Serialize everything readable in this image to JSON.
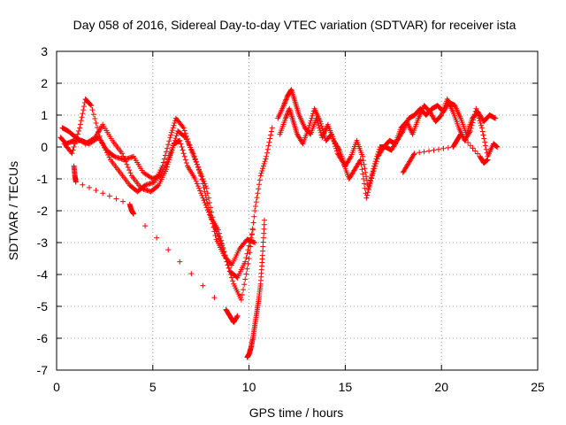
{
  "chart_data": {
    "type": "scatter",
    "title": "Day 058 of 2016, Sidereal Day-to-day VTEC variation (SDTVAR) for receiver ista",
    "xlabel": "GPS time / hours",
    "ylabel": "SDTVAR / TECUs",
    "xlim": [
      0,
      25
    ],
    "ylim": [
      -7,
      3
    ],
    "xticks": [
      "0",
      "5",
      "10",
      "15",
      "20",
      "25"
    ],
    "yticks": [
      "3",
      "2",
      "1",
      "0",
      "-1",
      "-2",
      "-3",
      "-4",
      "-5",
      "-6",
      "-7"
    ],
    "grid": true,
    "marker": "+",
    "series": [
      {
        "name": "SDTVAR",
        "color": "#ff0000",
        "tracks": [
          {
            "x": [
              0.2,
              0.5,
              0.9,
              1.3,
              1.7,
              2.2,
              2.6,
              3.0,
              3.5,
              4.0,
              4.5,
              5.0,
              5.4,
              5.8,
              6.1,
              6.4,
              6.8,
              7.2,
              7.6,
              8.0,
              8.4,
              8.8,
              9.2,
              9.6,
              10.0,
              10.3,
              10.6,
              10.9,
              11.2
            ],
            "y": [
              0.3,
              0.1,
              0.2,
              0.2,
              0.1,
              0.3,
              -0.1,
              -0.3,
              -0.4,
              -0.3,
              -0.8,
              -1.0,
              -0.9,
              -0.4,
              0.1,
              0.2,
              -0.6,
              -1.0,
              -1.6,
              -2.2,
              -2.6,
              -3.5,
              -4.3,
              -4.8,
              -3.5,
              -2.0,
              -0.9,
              -0.3,
              0.6
            ]
          },
          {
            "x": [
              0.3,
              0.6,
              1.0,
              1.5,
              2.0,
              2.4,
              2.9,
              3.4,
              3.9,
              4.4,
              4.9,
              5.3,
              5.7,
              6.0,
              6.3,
              6.7,
              7.1,
              7.5,
              7.9,
              8.3,
              8.7,
              9.1,
              9.5,
              9.9,
              10.3
            ],
            "y": [
              0.6,
              0.5,
              0.3,
              0.1,
              0.3,
              0.7,
              0.2,
              -0.2,
              -0.9,
              -1.3,
              -1.4,
              -1.2,
              -0.7,
              -0.1,
              0.5,
              0.3,
              -0.2,
              -0.9,
              -1.9,
              -2.9,
              -3.4,
              -3.7,
              -3.2,
              -2.9,
              -3.0
            ]
          },
          {
            "x": [
              0.4,
              0.8,
              1.2,
              1.5,
              1.8,
              2.3,
              2.8,
              3.3,
              3.8,
              4.2,
              4.6,
              5.1,
              5.5,
              5.9,
              6.2,
              6.6,
              7.0,
              7.4,
              7.8,
              8.2,
              8.6,
              9.0,
              9.4,
              9.8,
              10.2
            ],
            "y": [
              0.1,
              -0.2,
              0.6,
              1.5,
              1.3,
              0.2,
              -0.4,
              -0.8,
              -1.2,
              -1.4,
              -1.2,
              -1.1,
              -0.6,
              0.3,
              0.9,
              0.6,
              -0.1,
              -0.7,
              -1.3,
              -2.5,
              -3.1,
              -3.9,
              -4.1,
              -3.6,
              -2.6
            ]
          },
          {
            "x": [
              0.9,
              0.95,
              1.0,
              3.8,
              3.9,
              4.0,
              8.8,
              9.0,
              9.2,
              9.4
            ],
            "y": [
              -0.6,
              -0.9,
              -1.1,
              -1.8,
              -2.0,
              -2.1,
              -5.1,
              -5.3,
              -5.5,
              -5.3
            ]
          },
          {
            "x": [
              9.9,
              10.0,
              10.1,
              10.2,
              10.3,
              10.4,
              10.5,
              10.6,
              10.7,
              10.8
            ],
            "y": [
              -6.6,
              -6.5,
              -6.3,
              -6.0,
              -5.6,
              -5.2,
              -4.8,
              -4.3,
              -3.4,
              -2.3
            ]
          },
          {
            "x": [
              11.5,
              11.8,
              12.0,
              12.2,
              12.4,
              12.6,
              12.9,
              13.2,
              13.5,
              13.8,
              14.1,
              14.4,
              14.7,
              15.0,
              15.3,
              15.6,
              15.9,
              16.2,
              16.5,
              16.8,
              17.1,
              17.4,
              17.7,
              18.0,
              18.3,
              18.6,
              18.9,
              19.2,
              19.5,
              19.8,
              20.1,
              20.4,
              20.7,
              21.0,
              21.3,
              21.6,
              21.9,
              22.2,
              22.5,
              22.8
            ],
            "y": [
              0.9,
              1.3,
              1.6,
              1.8,
              1.4,
              1.0,
              0.6,
              0.4,
              0.9,
              0.3,
              0.7,
              0.2,
              -0.1,
              -0.6,
              -0.3,
              0.2,
              -0.3,
              -1.3,
              -0.6,
              0.0,
              0.0,
              -0.1,
              0.2,
              0.5,
              0.9,
              1.0,
              1.2,
              1.0,
              1.2,
              1.3,
              1.1,
              1.4,
              1.3,
              0.9,
              0.4,
              0.9,
              1.1,
              0.8,
              1.0,
              0.9
            ]
          },
          {
            "x": [
              11.6,
              11.9,
              12.1,
              12.3,
              12.5,
              12.8,
              13.1,
              13.4,
              13.7,
              14.0,
              14.3,
              14.6,
              14.9,
              15.2,
              15.5,
              15.8,
              16.1,
              16.4,
              16.7,
              17.0,
              17.3,
              17.6,
              17.9,
              18.2,
              18.5,
              18.8,
              19.1,
              19.4,
              19.7,
              20.0,
              20.3,
              20.6,
              20.9,
              21.2,
              21.5,
              21.8,
              22.1,
              22.4,
              22.7,
              22.9
            ],
            "y": [
              0.4,
              0.9,
              1.2,
              0.8,
              0.4,
              0.1,
              0.6,
              1.2,
              0.8,
              0.2,
              0.4,
              -0.2,
              -0.5,
              -1.0,
              -0.7,
              -0.4,
              -1.6,
              -0.9,
              -0.3,
              0.0,
              0.2,
              0.1,
              0.6,
              0.8,
              0.4,
              0.9,
              1.3,
              1.1,
              0.8,
              1.0,
              1.5,
              1.1,
              0.6,
              0.2,
              0.5,
              1.2,
              0.6,
              -0.3,
              0.1,
              0.0
            ]
          },
          {
            "x": [
              18.0,
              18.3,
              18.6,
              20.6,
              20.8,
              21.0,
              22.0,
              22.2,
              22.4
            ],
            "y": [
              -0.8,
              -0.5,
              -0.2,
              0.0,
              0.2,
              0.4,
              -0.3,
              -0.5,
              -0.4
            ]
          }
        ]
      }
    ]
  }
}
